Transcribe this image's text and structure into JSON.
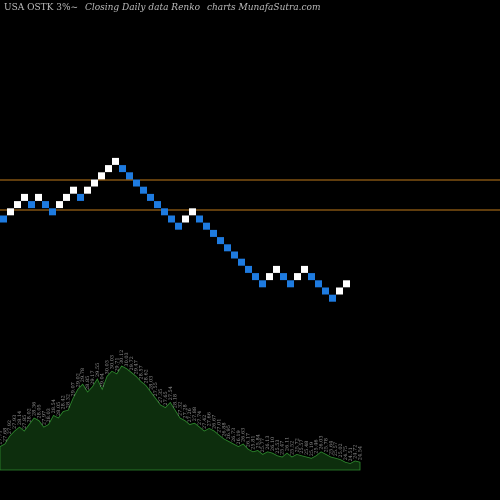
{
  "header": {
    "symbol": "USA OSTK 3%~",
    "chart_kind": "Closing Daily data Renko",
    "source": "charts MunafaSutra.com"
  },
  "colors": {
    "background": "#000000",
    "up_brick": "#ffffff",
    "down_brick": "#1e7be0",
    "level_lines": "#c07a1a",
    "volume_fill": "#0d2e0d",
    "volume_stroke": "#2e8b2e",
    "volume_label": "#9a9a9a"
  },
  "chart_data": [
    {
      "type": "renko",
      "brick_direction": [
        "down",
        "up",
        "up",
        "up",
        "down",
        "up",
        "down",
        "down",
        "up",
        "up",
        "up",
        "down",
        "up",
        "up",
        "up",
        "up",
        "up",
        "down",
        "down",
        "down",
        "down",
        "down",
        "down",
        "down",
        "down",
        "down",
        "up",
        "up",
        "down",
        "down",
        "down",
        "down",
        "down",
        "down",
        "down",
        "down",
        "down",
        "down",
        "up",
        "up",
        "down",
        "down",
        "up",
        "up",
        "down",
        "down",
        "down",
        "down",
        "up",
        "up"
      ],
      "horizontal_levels": 2,
      "grid": false
    },
    {
      "type": "area",
      "labels": [
        "27.71",
        "27.68",
        "27.92",
        "27.93",
        "28.14",
        "27.85",
        "28.02",
        "28.36",
        "28.05",
        "27.97",
        "28.03",
        "28.54",
        "28.05",
        "28.42",
        "28.32",
        "29.07",
        "29.02",
        "29.78",
        "28.85",
        "29.17",
        "29.55",
        "29.04",
        "30.03",
        "30.03",
        "29.71",
        "30.12",
        "30.03",
        "29.72",
        "29.47",
        "28.57",
        "28.62",
        "28.03",
        "27.55",
        "27.35",
        "27.65",
        "27.54",
        "28.18",
        "27.32",
        "27.28",
        "27.26",
        "27.88",
        "27.74",
        "27.42",
        "27.66",
        "26.67",
        "27.01",
        "26.88",
        "26.95",
        "26.73",
        "26.19",
        "26.63",
        "26.17",
        "25.81",
        "25.84",
        "25.77",
        "26.13",
        "26.10",
        "25.53",
        "25.47",
        "26.11",
        "25.52",
        "25.72",
        "25.57",
        "25.48",
        "25.19",
        "25.46",
        "26.03",
        "25.78",
        "25.64",
        "25.57",
        "25.02",
        "24.75",
        "24.51",
        "24.72",
        "24.54"
      ],
      "series": [
        {
          "values": [
            0.18,
            0.2,
            0.26,
            0.3,
            0.33,
            0.3,
            0.35,
            0.4,
            0.38,
            0.33,
            0.35,
            0.42,
            0.4,
            0.45,
            0.46,
            0.55,
            0.62,
            0.66,
            0.6,
            0.64,
            0.7,
            0.62,
            0.72,
            0.76,
            0.74,
            0.8,
            0.78,
            0.75,
            0.72,
            0.68,
            0.65,
            0.6,
            0.55,
            0.5,
            0.48,
            0.52,
            0.46,
            0.4,
            0.38,
            0.35,
            0.36,
            0.33,
            0.3,
            0.32,
            0.3,
            0.27,
            0.24,
            0.22,
            0.2,
            0.18,
            0.2,
            0.16,
            0.14,
            0.15,
            0.12,
            0.14,
            0.13,
            0.11,
            0.1,
            0.13,
            0.1,
            0.12,
            0.11,
            0.1,
            0.09,
            0.11,
            0.14,
            0.12,
            0.1,
            0.09,
            0.08,
            0.06,
            0.05,
            0.07,
            0.06
          ]
        }
      ]
    }
  ]
}
